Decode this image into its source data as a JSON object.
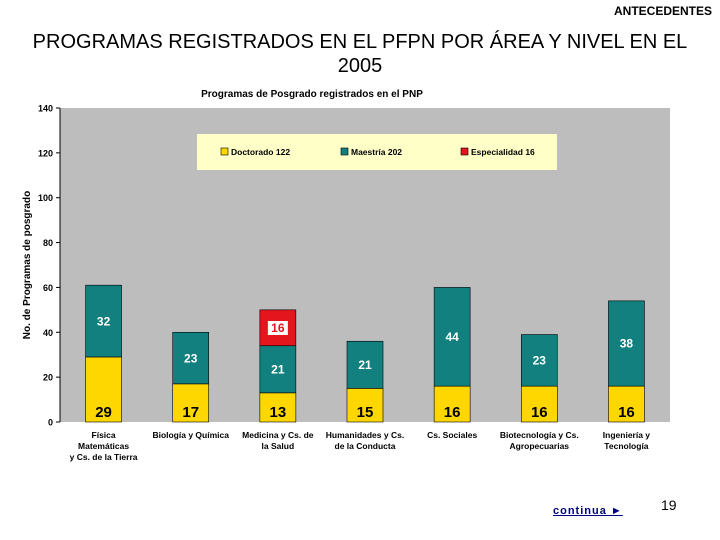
{
  "header": {
    "tag": "ANTECEDENTES"
  },
  "slide": {
    "title": "PROGRAMAS REGISTRADOS EN EL PFPN POR ÁREA Y NIVEL EN EL 2005",
    "continue_label": "continua ►",
    "page_number": "19"
  },
  "colors": {
    "doctorado": "#ffd700",
    "maestria": "#138080",
    "especialidad": "#e4151c",
    "plot_bg": "#bdbdbd",
    "legend_bg": "#ffffc8"
  },
  "chart_data": {
    "type": "bar",
    "stacked": true,
    "title": "Programas de Posgrado  registrados  en el PNP",
    "ylabel": "No. de Programas  de posgrado",
    "xlabel": "",
    "ylim": [
      0,
      140
    ],
    "yticks": [
      0,
      20,
      40,
      60,
      80,
      100,
      120,
      140
    ],
    "grid": false,
    "legend_position": "top",
    "categories": [
      [
        "Física",
        "Matemáticas",
        "y Cs. de la Tierra"
      ],
      [
        "Biología y Química"
      ],
      [
        "Medicina y Cs. de",
        "la Salud"
      ],
      [
        "Humanidades y Cs.",
        "de la Conducta"
      ],
      [
        "Cs. Sociales"
      ],
      [
        "Biotecnología y Cs.",
        "Agropecuarias"
      ],
      [
        "Ingeniería y",
        "Tecnología"
      ]
    ],
    "series": [
      {
        "name": "Doctorado",
        "legend_label": "Doctorado 122",
        "color_key": "doctorado",
        "values": [
          29,
          17,
          13,
          15,
          16,
          16,
          16
        ]
      },
      {
        "name": "Maestría",
        "legend_label": "Maestría 202",
        "color_key": "maestria",
        "values": [
          32,
          23,
          21,
          21,
          44,
          23,
          38
        ]
      },
      {
        "name": "Especialidad",
        "legend_label": "Especialidad 16",
        "color_key": "especialidad",
        "values": [
          0,
          0,
          16,
          0,
          0,
          0,
          0
        ]
      }
    ]
  }
}
